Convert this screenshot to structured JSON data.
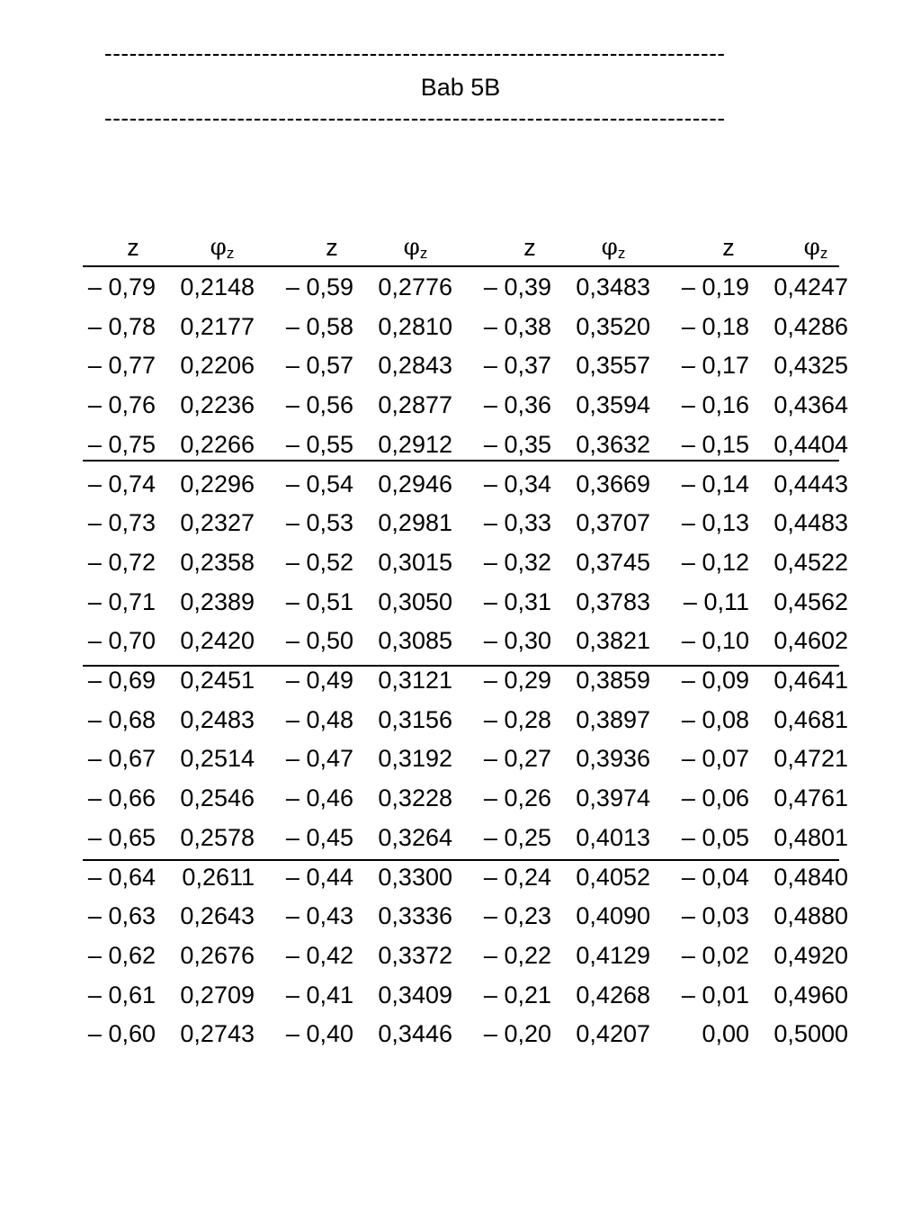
{
  "header": {
    "dash_line": "---------------------------------------------------------------------------",
    "title": "Bab 5B"
  },
  "table": {
    "z_header": "z",
    "phi_symbol": "φ",
    "phi_sub": "z",
    "rows": [
      [
        "– 0,79",
        "0,2148",
        "– 0,59",
        "0,2776",
        "– 0,39",
        "0,3483",
        "– 0,19",
        "0,4247"
      ],
      [
        "– 0,78",
        "0,2177",
        "– 0,58",
        "0,2810",
        "– 0,38",
        "0,3520",
        "– 0,18",
        "0,4286"
      ],
      [
        "– 0,77",
        "0,2206",
        "– 0,57",
        "0,2843",
        "– 0,37",
        "0,3557",
        "– 0,17",
        "0,4325"
      ],
      [
        "– 0,76",
        "0,2236",
        "– 0,56",
        "0,2877",
        "– 0,36",
        "0,3594",
        "– 0,16",
        "0,4364"
      ],
      [
        "– 0,75",
        "0,2266",
        "– 0,55",
        "0,2912",
        "– 0,35",
        "0,3632",
        "– 0,15",
        "0,4404"
      ],
      [
        "– 0,74",
        "0,2296",
        "– 0,54",
        "0,2946",
        "– 0,34",
        "0,3669",
        "– 0,14",
        "0,4443"
      ],
      [
        "– 0,73",
        "0,2327",
        "– 0,53",
        "0,2981",
        "– 0,33",
        "0,3707",
        "– 0,13",
        "0,4483"
      ],
      [
        "– 0,72",
        "0,2358",
        "– 0,52",
        "0,3015",
        "– 0,32",
        "0,3745",
        "– 0,12",
        "0,4522"
      ],
      [
        "– 0,71",
        "0,2389",
        "– 0,51",
        "0,3050",
        "– 0,31",
        "0,3783",
        "– 0,11",
        "0,4562"
      ],
      [
        "– 0,70",
        "0,2420",
        "– 0,50",
        "0,3085",
        "– 0,30",
        "0,3821",
        "– 0,10",
        "0,4602"
      ],
      [
        "– 0,69",
        "0,2451",
        "– 0,49",
        "0,3121",
        "– 0,29",
        "0,3859",
        "– 0,09",
        "0,4641"
      ],
      [
        "– 0,68",
        "0,2483",
        "– 0,48",
        "0,3156",
        "– 0,28",
        "0,3897",
        "– 0,08",
        "0,4681"
      ],
      [
        "– 0,67",
        "0,2514",
        "– 0,47",
        "0,3192",
        "– 0,27",
        "0,3936",
        "– 0,07",
        "0,4721"
      ],
      [
        "– 0,66",
        "0,2546",
        "– 0,46",
        "0,3228",
        "– 0,26",
        "0,3974",
        "– 0,06",
        "0,4761"
      ],
      [
        "– 0,65",
        "0,2578",
        "– 0,45",
        "0,3264",
        "– 0,25",
        "0,4013",
        "– 0,05",
        "0,4801"
      ],
      [
        "– 0,64",
        "0,2611",
        "– 0,44",
        "0,3300",
        "– 0,24",
        "0,4052",
        "– 0,04",
        "0,4840"
      ],
      [
        "– 0,63",
        "0,2643",
        "– 0,43",
        "0,3336",
        "– 0,23",
        "0,4090",
        "– 0,03",
        "0,4880"
      ],
      [
        "– 0,62",
        "0,2676",
        "– 0,42",
        "0,3372",
        "– 0,22",
        "0,4129",
        "– 0,02",
        "0,4920"
      ],
      [
        "– 0,61",
        "0,2709",
        "– 0,41",
        "0,3409",
        "– 0,21",
        "0,4268",
        "– 0,01",
        "0,4960"
      ],
      [
        "– 0,60",
        "0,2743",
        "– 0,40",
        "0,3446",
        "– 0,20",
        "0,4207",
        "0,00",
        "0,5000"
      ]
    ]
  }
}
